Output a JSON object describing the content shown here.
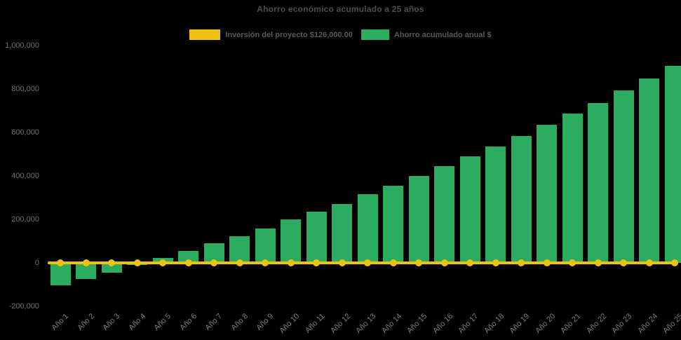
{
  "window": {
    "background_color": "#000000"
  },
  "title": "Ahorro económico acumulado a 25 años",
  "legend": {
    "position": "top",
    "items": [
      {
        "label": "Inversión del proyecto $126,000.00",
        "color": "#EDC213",
        "swatch_width": 44
      },
      {
        "label": "Ahorro acumulado anual $",
        "color": "#2BAC5E",
        "swatch_width": 40
      }
    ]
  },
  "colors": {
    "bar_green": "#2BAC5E",
    "line_yellow": "#EDC213",
    "title_text": "#4D4D4D",
    "legend_text": "#595959",
    "y_axis_text": "#6F6F6F",
    "x_axis_text": "#7B7B7B",
    "background": "#000000"
  },
  "chart_data": {
    "type": "bar",
    "title": "Ahorro económico acumulado a 25 años",
    "categories": [
      "Año 1",
      "Año 2",
      "Año 3",
      "Año 4",
      "Año 5",
      "Año 6",
      "Año 7",
      "Año 8",
      "Año 9",
      "Año 10",
      "Año 11",
      "Año 12",
      "Año 13",
      "Año 14",
      "Año 15",
      "Año 16",
      "Año 17",
      "Año 18",
      "Año 19",
      "Año 20",
      "Año 21",
      "Año 22",
      "Año 23",
      "Año 24",
      "Año 25"
    ],
    "series": [
      {
        "name": "Ahorro acumulado anual $",
        "type": "bar",
        "color": "#2BAC5E",
        "values": [
          -102000,
          -75000,
          -44000,
          -11000,
          24000,
          54000,
          89000,
          122000,
          158000,
          199000,
          237000,
          272000,
          315000,
          355000,
          400000,
          444000,
          491000,
          535000,
          585000,
          634000,
          688000,
          737000,
          793000,
          848000,
          906000
        ]
      },
      {
        "name": "Inversión del proyecto $126,000.00",
        "type": "line",
        "color": "#EDC213",
        "marker": "circle",
        "values": [
          0,
          0,
          0,
          0,
          0,
          0,
          0,
          0,
          0,
          0,
          0,
          0,
          0,
          0,
          0,
          0,
          0,
          0,
          0,
          0,
          0,
          0,
          0,
          0,
          0
        ],
        "note": "flat line with round markers drawn at the 0 level across all 25 years; investment amount shown in legend is $126,000.00"
      }
    ],
    "xlabel": "",
    "ylabel": "",
    "ylim": [
      -200000,
      1000000
    ],
    "y_ticks": [
      1000000,
      800000,
      600000,
      400000,
      200000,
      0,
      -200000
    ],
    "grid": false,
    "legend_position": "top",
    "background": "#000000"
  }
}
